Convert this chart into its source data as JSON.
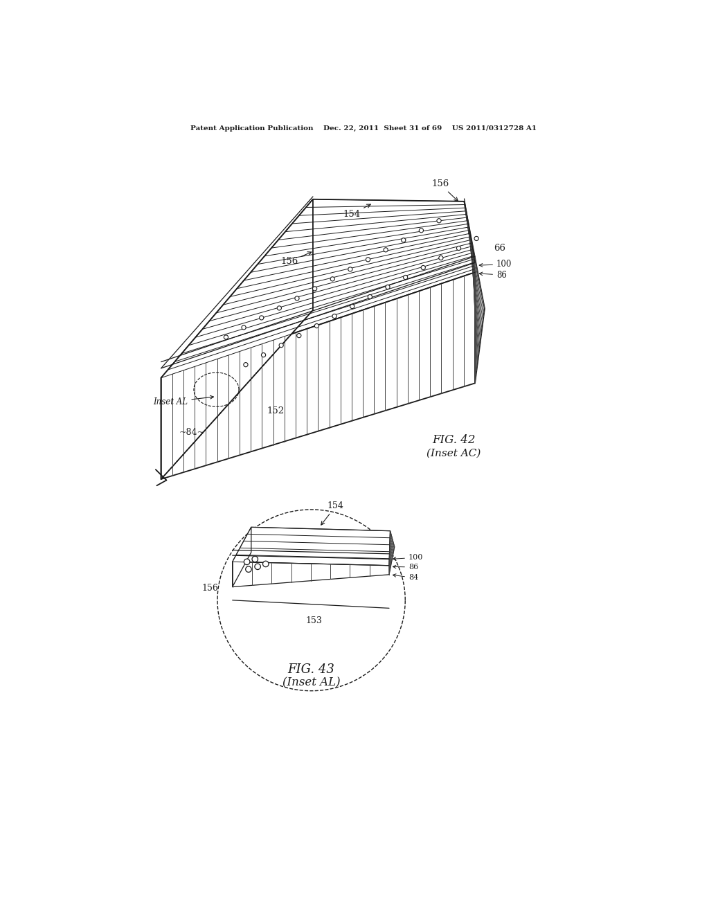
{
  "bg_color": "#ffffff",
  "header_text": "Patent Application Publication    Dec. 22, 2011  Sheet 31 of 69    US 2011/0312728 A1",
  "fig42_caption": "FIG. 42",
  "fig42_subcaption": "(Inset AC)",
  "fig43_caption": "FIG. 43",
  "fig43_subcaption": "(Inset AL)",
  "line_color": "#1a1a1a",
  "hatch_color": "#444444"
}
